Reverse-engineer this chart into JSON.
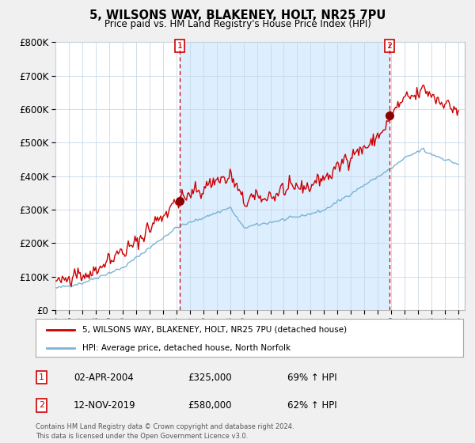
{
  "title1": "5, WILSONS WAY, BLAKENEY, HOLT, NR25 7PU",
  "title2": "Price paid vs. HM Land Registry's House Price Index (HPI)",
  "ytick_values": [
    0,
    100000,
    200000,
    300000,
    400000,
    500000,
    600000,
    700000,
    800000
  ],
  "ylim": [
    0,
    800000
  ],
  "hpi_color": "#7ab3d4",
  "price_color": "#cc0000",
  "marker1_year": 2004.25,
  "marker1_price": 325000,
  "marker2_year": 2019.87,
  "marker2_price": 580000,
  "legend_line1": "5, WILSONS WAY, BLAKENEY, HOLT, NR25 7PU (detached house)",
  "legend_line2": "HPI: Average price, detached house, North Norfolk",
  "ann1_label": "1",
  "ann1_date": "02-APR-2004",
  "ann1_price": "£325,000",
  "ann1_hpi": "69% ↑ HPI",
  "ann2_label": "2",
  "ann2_date": "12-NOV-2019",
  "ann2_price": "£580,000",
  "ann2_hpi": "62% ↑ HPI",
  "footer": "Contains HM Land Registry data © Crown copyright and database right 2024.\nThis data is licensed under the Open Government Licence v3.0.",
  "background_color": "#f0f0f0",
  "plot_bg_color": "#ffffff",
  "shade_color": "#ddeeff"
}
